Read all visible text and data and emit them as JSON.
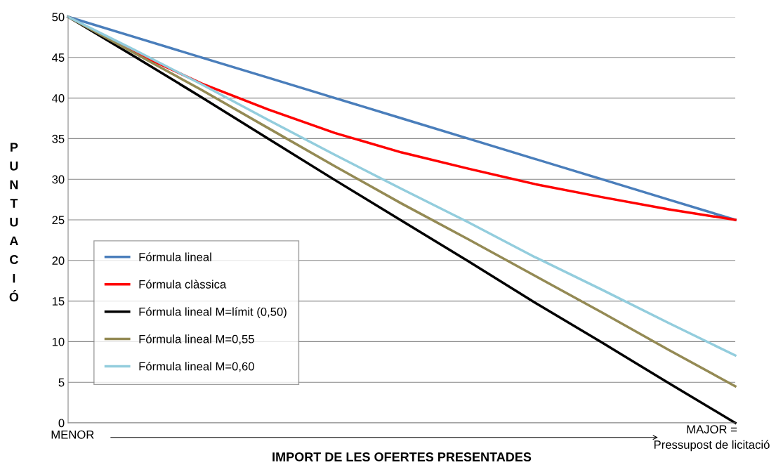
{
  "chart_data": {
    "type": "line",
    "xlabel": "IMPORT DE LES OFERTES PRESENTADES",
    "ylabel": "PUNTUACIÓ",
    "categories": [
      null,
      null,
      null,
      null,
      null,
      null,
      null,
      null,
      null,
      null,
      null
    ],
    "annotations": [
      "MENOR",
      "MAJOR =\nPressupost de licitació"
    ],
    "series": [
      {
        "name": "Fórmula lineal",
        "color": "#4a7ebb",
        "values": [
          50,
          47.5,
          45,
          42.5,
          40,
          37.5,
          35,
          32.5,
          30,
          27.5,
          25
        ]
      },
      {
        "name": "Fórmula clàssica",
        "color": "#ff0000",
        "values": [
          50,
          45.6,
          41.8,
          38.6,
          35.7,
          33.3,
          31.3,
          29.4,
          27.8,
          26.3,
          25
        ]
      },
      {
        "name": "Fórmula lineal M=límit (0,50)",
        "color": "#000000",
        "values": [
          50,
          45.1,
          40.1,
          35.0,
          29.9,
          24.9,
          19.9,
          14.8,
          9.9,
          4.9,
          0
        ]
      },
      {
        "name": "Fórmula lineal M=0,55",
        "color": "#948a54",
        "values": [
          50,
          45.5,
          41.0,
          36.3,
          31.6,
          27.0,
          22.6,
          18.1,
          13.6,
          9.0,
          4.5
        ]
      },
      {
        "name": "Fórmula lineal M=0,60",
        "color": "#93cddd",
        "values": [
          50,
          45.9,
          41.7,
          37.3,
          33.0,
          28.8,
          24.7,
          20.4,
          16.4,
          12.3,
          8.3
        ]
      }
    ],
    "ylim": [
      0,
      50
    ],
    "yticks": [
      0,
      5,
      10,
      15,
      20,
      25,
      30,
      35,
      40,
      45,
      50
    ],
    "grid": "y",
    "legend": "bottom left",
    "marker": "none",
    "line_style": "solid"
  }
}
